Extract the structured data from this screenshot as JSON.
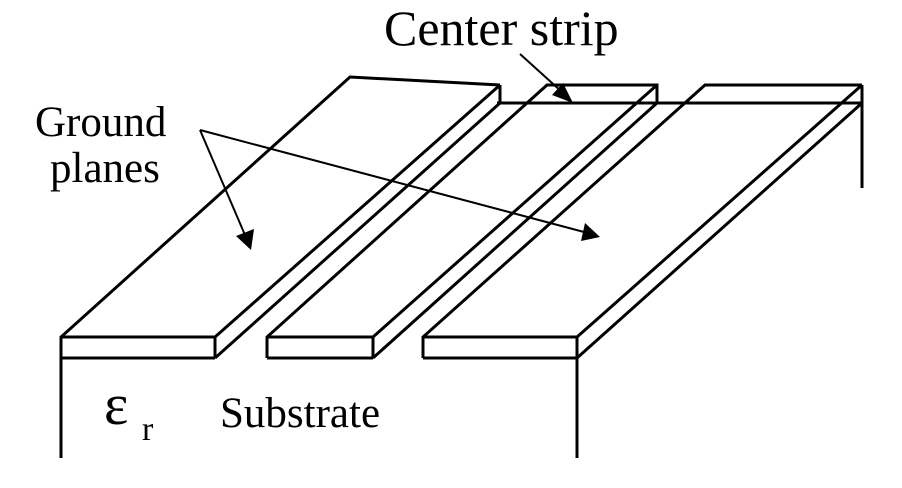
{
  "labels": {
    "center_strip": "Center strip",
    "ground_line1": "Ground",
    "ground_line2": "planes",
    "epsilon": "ε",
    "epsilon_subscript": "r",
    "substrate": "Substrate"
  },
  "colors": {
    "line": "#000000",
    "background": "#ffffff"
  }
}
